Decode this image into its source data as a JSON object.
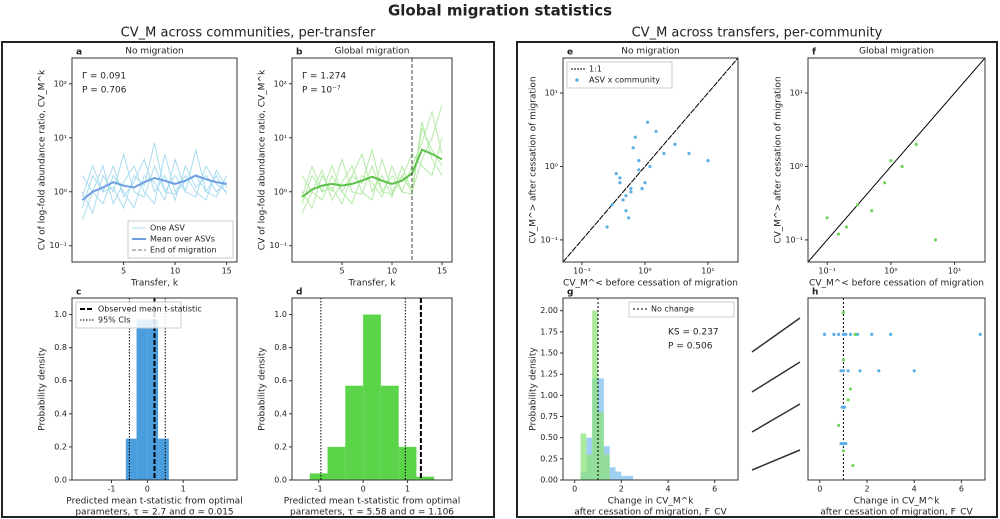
{
  "title": "Global migration statistics",
  "sections": [
    "CV_M across communities, per-transfer",
    "CV_M across transfers, per-community"
  ],
  "chart_data": [
    {
      "type": "line",
      "label": "a",
      "title": "No migration",
      "xlabel": [
        "Transfer, k"
      ],
      "ylabel": "CV of log-fold abundance ratio, CV_M^k",
      "ylog": true,
      "x": [
        1,
        2,
        3,
        4,
        5,
        6,
        7,
        8,
        9,
        10,
        11,
        12,
        13,
        14,
        15
      ],
      "xlim": [
        0,
        16
      ],
      "ylim": [
        0.05,
        300
      ],
      "xticks": [
        5,
        10,
        15
      ],
      "yticks": [
        {
          "value": 0.1,
          "label": "10⁻¹"
        },
        {
          "value": 1,
          "label": "10⁰"
        },
        {
          "value": 10,
          "label": "10¹"
        },
        {
          "value": 100,
          "label": "10²"
        }
      ],
      "line_name": "One ASV",
      "line_color": "#a8dcef",
      "lines": [
        [
          0.5,
          2,
          1,
          3,
          0.8,
          1.5,
          4,
          1,
          2,
          0.7,
          3,
          1.2,
          2,
          1,
          1.5
        ],
        [
          1,
          0.4,
          2,
          1,
          5,
          1,
          0.8,
          3,
          1,
          2,
          1,
          6,
          1,
          2,
          0.9
        ],
        [
          0.3,
          1,
          0.6,
          2,
          1,
          0.5,
          2,
          1.5,
          0.7,
          4,
          1,
          0.8,
          3,
          1.4,
          1
        ],
        [
          2,
          1,
          3,
          0.6,
          1.5,
          3,
          1,
          0.6,
          5,
          1,
          2,
          1,
          0.7,
          2.5,
          1.2
        ],
        [
          0.8,
          3,
          1,
          1.2,
          0.5,
          2,
          1.3,
          8,
          1,
          0.9,
          1.6,
          2,
          1,
          0.8,
          2
        ]
      ],
      "mean": {
        "name": "Mean over ASVs",
        "color": "#6f9fe0",
        "values": [
          0.7,
          1,
          1.2,
          1.5,
          1.3,
          1.2,
          1.5,
          1.8,
          1.6,
          1.4,
          1.6,
          2,
          1.7,
          1.5,
          1.4
        ]
      },
      "end_name": "End of migration",
      "vline_color": "#777777",
      "annotations": [
        "Γ = 0.091",
        "P = 0.706"
      ],
      "legend": "lower right"
    },
    {
      "type": "line",
      "label": "b",
      "title": "Global migration",
      "xlabel": [
        "Transfer, k"
      ],
      "ylabel": "CV of log-fold abundance ratio, CV_M^k",
      "ylog": true,
      "x": [
        1,
        2,
        3,
        4,
        5,
        6,
        7,
        8,
        9,
        10,
        11,
        12,
        13,
        14,
        15
      ],
      "xlim": [
        0,
        16
      ],
      "ylim": [
        0.05,
        300
      ],
      "xticks": [
        5,
        10,
        15
      ],
      "yticks": [
        {
          "value": 0.1,
          "label": "10⁻¹"
        },
        {
          "value": 1,
          "label": "10⁰"
        },
        {
          "value": 10,
          "label": "10¹"
        },
        {
          "value": 100,
          "label": "10²"
        }
      ],
      "line_color": "#b5eaa8",
      "lines": [
        [
          0.6,
          2,
          1,
          3,
          1,
          2,
          5,
          1,
          2,
          0.8,
          3,
          1,
          20,
          4,
          2
        ],
        [
          1,
          0.5,
          2,
          1,
          4,
          1,
          0.9,
          3,
          1,
          2,
          1,
          3,
          8,
          30,
          5
        ],
        [
          0.4,
          1,
          0.7,
          2,
          1,
          0.6,
          2,
          1.5,
          0.8,
          3,
          1,
          0.9,
          15,
          6,
          3
        ],
        [
          2,
          1,
          2.5,
          0.7,
          1.5,
          3,
          1,
          0.7,
          4,
          1,
          2,
          1,
          4,
          10,
          40
        ],
        [
          0.8,
          3,
          1,
          1.2,
          0.6,
          2,
          1.4,
          6,
          1,
          0.9,
          1.8,
          5,
          3,
          2,
          10
        ]
      ],
      "mean": {
        "color": "#5cc04a",
        "values": [
          0.8,
          1.1,
          1.3,
          1.4,
          1.3,
          1.4,
          1.6,
          1.9,
          1.6,
          1.4,
          1.6,
          2.2,
          6,
          5,
          4
        ]
      },
      "vline": 12,
      "vline_color": "#444444",
      "annotations": [
        "Γ = 1.274",
        "P = 10⁻⁷"
      ]
    },
    {
      "type": "hist",
      "label": "c",
      "xlabel": [
        "Predicted mean t-statistic from optimal",
        "parameters, τ = 2.7 and σ = 0.015"
      ],
      "ylabel": "Probability density",
      "xlim": [
        -2.1,
        2.5
      ],
      "ylim": [
        0,
        1.1
      ],
      "xticks": [
        -1,
        0,
        1
      ],
      "yticks": [
        {
          "value": 0,
          "label": "0.0"
        },
        {
          "value": 0.2,
          "label": "0.2"
        },
        {
          "value": 0.4,
          "label": "0.4"
        },
        {
          "value": 0.6,
          "label": "0.6"
        },
        {
          "value": 0.8,
          "label": "0.8"
        },
        {
          "value": 1,
          "label": "1.0"
        }
      ],
      "series": [
        {
          "color": "#4a9ede",
          "bins": [
            -0.6,
            -0.3,
            0,
            0.3,
            0.6
          ],
          "values": [
            0.25,
            0.97,
            0.97,
            0.25
          ]
        }
      ],
      "observed": 0.2,
      "observed_name": "Observed mean t-statistic",
      "ci": [
        -0.5,
        0.5
      ],
      "ci_name": "95% CIs",
      "legend": "upper left"
    },
    {
      "type": "hist",
      "label": "d",
      "xlabel": [
        "Predicted mean t-statistic from optimal",
        "parameters, τ = 5.58 and σ = 1.106"
      ],
      "ylabel": "Probability density",
      "xlim": [
        -1.6,
        2.0
      ],
      "ylim": [
        0,
        1.1
      ],
      "xticks": [
        -1,
        0,
        1
      ],
      "yticks": [
        {
          "value": 0,
          "label": "0.0"
        },
        {
          "value": 0.2,
          "label": "0.2"
        },
        {
          "value": 0.4,
          "label": "0.4"
        },
        {
          "value": 0.6,
          "label": "0.6"
        },
        {
          "value": 0.8,
          "label": "0.8"
        },
        {
          "value": 1,
          "label": "1.0"
        }
      ],
      "series": [
        {
          "color": "#5bd44a",
          "bins": [
            -1.2,
            -0.8,
            -0.4,
            0,
            0.4,
            0.8,
            1.2,
            1.6
          ],
          "values": [
            0.04,
            0.2,
            0.57,
            1.0,
            0.57,
            0.2,
            0.02
          ]
        }
      ],
      "observed": 1.3,
      "ci": [
        -0.95,
        0.95
      ]
    },
    {
      "type": "scatter",
      "label": "e",
      "title": "No migration",
      "xlabel": [
        "CV_M^< before cessation of migration"
      ],
      "ylabel": "CV_M^> after cessation of migration",
      "xlog": true,
      "ylog": true,
      "xlim": [
        0.05,
        30
      ],
      "ylim": [
        0.05,
        30
      ],
      "xticks": [
        {
          "value": 0.1,
          "label": "10⁻¹"
        },
        {
          "value": 1,
          "label": "10⁰"
        },
        {
          "value": 10,
          "label": "10¹"
        }
      ],
      "yticks": [
        {
          "value": 0.1,
          "label": "10⁻¹"
        },
        {
          "value": 1,
          "label": "10⁰"
        },
        {
          "value": 10,
          "label": "10¹"
        }
      ],
      "diag_name": "1:1",
      "series": [
        {
          "name": "ASV x community",
          "color": "#5aaee8",
          "x": [
            0.3,
            0.5,
            0.4,
            0.6,
            0.8,
            1.0,
            0.7,
            0.5,
            1.2,
            1.5,
            0.9,
            2.0,
            0.35,
            0.45,
            0.6,
            3,
            5,
            0.55,
            0.8,
            1.1,
            0.25,
            10,
            0.65,
            0.4
          ],
          "y": [
            0.3,
            0.4,
            0.7,
            0.5,
            1.2,
            0.6,
            2.5,
            0.25,
            1.0,
            3.0,
            0.5,
            1.5,
            0.8,
            0.35,
            0.45,
            2.0,
            1.5,
            0.2,
            0.9,
            4.0,
            0.15,
            1.2,
            1.8,
            0.6
          ]
        }
      ],
      "legend": "upper left"
    },
    {
      "type": "scatter",
      "label": "f",
      "title": "Global migration",
      "xlabel": [
        "CV_M^< before cessation of migration"
      ],
      "ylabel": "CV_M^> after cessation of migration",
      "xlog": true,
      "ylog": true,
      "xlim": [
        0.05,
        30
      ],
      "ylim": [
        0.05,
        30
      ],
      "xticks": [
        {
          "value": 0.1,
          "label": "10⁻¹"
        },
        {
          "value": 1,
          "label": "10⁰"
        },
        {
          "value": 10,
          "label": "10¹"
        }
      ],
      "yticks": [
        {
          "value": 0.1,
          "label": "10⁻¹"
        },
        {
          "value": 1,
          "label": "10⁰"
        },
        {
          "value": 10,
          "label": "10¹"
        }
      ],
      "diag": true,
      "series": [
        {
          "color": "#6fd85c",
          "x": [
            0.1,
            0.15,
            0.3,
            0.5,
            1.0,
            1.5,
            2.5,
            0.2,
            0.8,
            5
          ],
          "y": [
            0.2,
            0.12,
            0.3,
            0.25,
            1.2,
            1.0,
            2.0,
            0.15,
            0.6,
            0.1
          ]
        }
      ]
    },
    {
      "type": "hist",
      "label": "g",
      "xlabel": [
        "Change in CV_M^k",
        "after cessation of migration, F_CV"
      ],
      "ylabel": "Probability density",
      "xlim": [
        -0.5,
        7
      ],
      "ylim": [
        0,
        2.15
      ],
      "xticks": [
        0,
        2,
        4,
        6
      ],
      "yticks": [
        {
          "value": 0,
          "label": "0.00"
        },
        {
          "value": 0.25,
          "label": "0.25"
        },
        {
          "value": 0.5,
          "label": "0.50"
        },
        {
          "value": 0.75,
          "label": "0.75"
        },
        {
          "value": 1,
          "label": "1.00"
        },
        {
          "value": 1.25,
          "label": "1.25"
        },
        {
          "value": 1.5,
          "label": "1.50"
        },
        {
          "value": 1.75,
          "label": "1.75"
        },
        {
          "value": 2,
          "label": "2.00"
        }
      ],
      "series": [
        {
          "color": "#9fd0f2",
          "bins": [
            0.25,
            0.5,
            0.75,
            1,
            1.25,
            1.5,
            1.75,
            2,
            2.5
          ],
          "values": [
            0.1,
            0.5,
            1.2,
            1.2,
            0.4,
            0.15,
            0.1,
            0.05
          ]
        },
        {
          "color": "#8fe27c",
          "bins": [
            0.25,
            0.5,
            0.75,
            1,
            1.25,
            1.5
          ],
          "values": [
            0.55,
            0.3,
            2.0,
            0.8,
            0.3
          ]
        }
      ],
      "vline": 1,
      "vline_name": "No change",
      "annotations": [
        "KS = 0.237",
        "P = 0.506"
      ],
      "legend": "upper right"
    },
    {
      "type": "scatter",
      "label": "h",
      "xlabel": [
        "Change in CV_M^k",
        "after cessation of migration, F_CV"
      ],
      "xlim": [
        -0.5,
        7
      ],
      "ylim": [
        0,
        5
      ],
      "xticks": [
        0,
        2,
        4,
        6
      ],
      "vline": 1,
      "series": [
        {
          "color": "#5aaee8",
          "x": [
            0.2,
            0.6,
            0.8,
            1.0,
            1.1,
            1.3,
            1.6,
            2.2,
            3.0,
            6.8,
            0.9,
            1.0,
            1.2,
            1.7,
            2.5,
            4.0,
            1.0,
            0.95,
            1.05,
            1.0,
            1.1,
            0.9
          ],
          "y": [
            4,
            4,
            4,
            4,
            4,
            4,
            4,
            4,
            4,
            4,
            3,
            3,
            3,
            3,
            3,
            3,
            2,
            2,
            2,
            1,
            1,
            1
          ]
        },
        {
          "color": "#6fd85c",
          "x": [
            1.0,
            1.5,
            1.0,
            1.3,
            0.8,
            1.2,
            1.0,
            1.4
          ],
          "y": [
            4.6,
            4.0,
            3.3,
            2.5,
            1.5,
            2.2,
            0.8,
            0.4
          ]
        }
      ]
    }
  ]
}
